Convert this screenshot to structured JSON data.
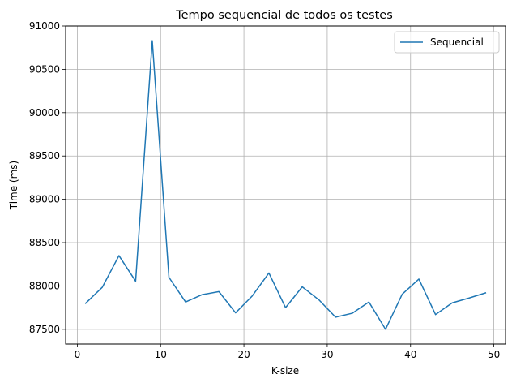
{
  "chart_data": {
    "type": "line",
    "title": "Tempo sequencial de todos os testes",
    "xlabel": "K-size",
    "ylabel": "Time (ms)",
    "xlim": [
      -1.4,
      51.4
    ],
    "ylim": [
      87330,
      91000
    ],
    "xticks": [
      0,
      10,
      20,
      30,
      40,
      50
    ],
    "yticks": [
      87500,
      88000,
      88500,
      89000,
      89500,
      90000,
      90500,
      91000
    ],
    "grid": true,
    "legend_position": "top-right",
    "series": [
      {
        "name": "Sequencial",
        "color": "#1f77b4",
        "x": [
          1,
          3,
          5,
          7,
          9,
          11,
          13,
          15,
          17,
          19,
          21,
          23,
          25,
          27,
          29,
          31,
          33,
          35,
          37,
          39,
          41,
          43,
          45,
          47,
          49
        ],
        "y": [
          87800,
          87985,
          88350,
          88055,
          90830,
          88100,
          87815,
          87900,
          87935,
          87690,
          87885,
          88150,
          87750,
          87990,
          87840,
          87640,
          87685,
          87815,
          87500,
          87905,
          88080,
          87670,
          87805,
          87860,
          87920
        ]
      }
    ]
  }
}
